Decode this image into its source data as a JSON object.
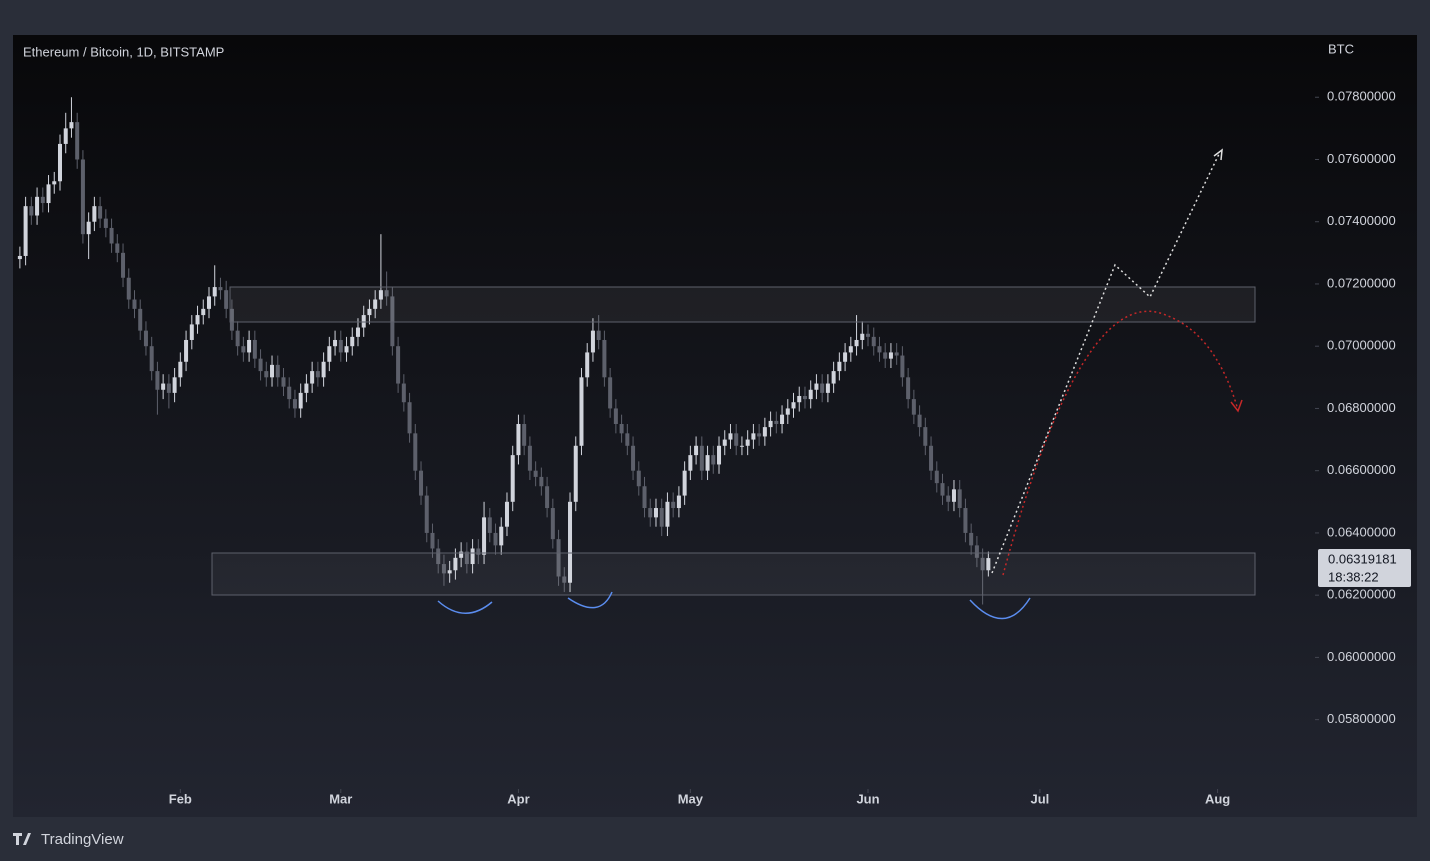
{
  "chart_data": {
    "type": "candlestick",
    "title": "Ethereum / Bitcoin, 1D, BITSTAMP",
    "y_axis_unit": "BTC",
    "countdown": "18:38:22",
    "brand": "TradingView",
    "up_color": "#d1d4dc",
    "down_color": "#5d606b",
    "xlim": [
      -1.2,
      226
    ],
    "xticks": [
      {
        "value": 28,
        "label": "Feb"
      },
      {
        "value": 56,
        "label": "Mar"
      },
      {
        "value": 87,
        "label": "Apr"
      },
      {
        "value": 117,
        "label": "May"
      },
      {
        "value": 148,
        "label": "Jun"
      },
      {
        "value": 178,
        "label": "Jul"
      },
      {
        "value": 209,
        "label": "Aug"
      }
    ],
    "ylim": [
      0.0559,
      0.08
    ],
    "yticks": [
      {
        "value": 0.078,
        "label": "0.07800000"
      },
      {
        "value": 0.076,
        "label": "0.07600000"
      },
      {
        "value": 0.074,
        "label": "0.07400000"
      },
      {
        "value": 0.072,
        "label": "0.07200000"
      },
      {
        "value": 0.07,
        "label": "0.07000000"
      },
      {
        "value": 0.068,
        "label": "0.06800000"
      },
      {
        "value": 0.066,
        "label": "0.06600000"
      },
      {
        "value": 0.064,
        "label": "0.06400000"
      },
      {
        "value": 0.062,
        "label": "0.06200000"
      },
      {
        "value": 0.06,
        "label": "0.06000000"
      },
      {
        "value": 0.058,
        "label": "0.05800000"
      }
    ],
    "open": [
      0.0728,
      0.0729,
      0.0745,
      0.0742,
      0.0748,
      0.0746,
      0.0752,
      0.0753,
      0.0765,
      0.077,
      0.0772,
      0.076,
      0.0736,
      0.074,
      0.0745,
      0.0741,
      0.0738,
      0.0733,
      0.073,
      0.0722,
      0.0715,
      0.0712,
      0.0705,
      0.07,
      0.0692,
      0.0686,
      0.0688,
      0.0685,
      0.069,
      0.0695,
      0.0702,
      0.0707,
      0.071,
      0.0712,
      0.0716,
      0.0719,
      0.0718,
      0.0712,
      0.0705,
      0.07,
      0.0698,
      0.0702,
      0.0696,
      0.0692,
      0.069,
      0.0694,
      0.069,
      0.0687,
      0.0683,
      0.068,
      0.0685,
      0.0688,
      0.0692,
      0.069,
      0.0695,
      0.07,
      0.0702,
      0.0698,
      0.07,
      0.0703,
      0.0706,
      0.071,
      0.0712,
      0.0715,
      0.0718,
      0.0716,
      0.07,
      0.0688,
      0.0682,
      0.0672,
      0.066,
      0.0652,
      0.064,
      0.0635,
      0.063,
      0.0627,
      0.0628,
      0.0632,
      0.0634,
      0.063,
      0.0635,
      0.0633,
      0.0645,
      0.064,
      0.0636,
      0.0642,
      0.065,
      0.0665,
      0.0675,
      0.0668,
      0.066,
      0.0658,
      0.0655,
      0.0648,
      0.0638,
      0.0626,
      0.0624,
      0.065,
      0.0668,
      0.069,
      0.0698,
      0.0705,
      0.0702,
      0.069,
      0.068,
      0.0675,
      0.0672,
      0.0668,
      0.066,
      0.0655,
      0.0648,
      0.0645,
      0.0648,
      0.0642,
      0.065,
      0.0648,
      0.0652,
      0.066,
      0.0665,
      0.0668,
      0.066,
      0.0665,
      0.0662,
      0.0668,
      0.067,
      0.0672,
      0.0668,
      0.0668,
      0.067,
      0.0672,
      0.0671,
      0.0674,
      0.0676,
      0.0675,
      0.0678,
      0.068,
      0.0682,
      0.0684,
      0.0683,
      0.0686,
      0.0688,
      0.0685,
      0.0688,
      0.0692,
      0.0695,
      0.0698,
      0.07,
      0.0702,
      0.0704,
      0.0703,
      0.07,
      0.0698,
      0.0696,
      0.0698,
      0.0697,
      0.069,
      0.0683,
      0.0678,
      0.0674,
      0.0668,
      0.066,
      0.0656,
      0.0652,
      0.065,
      0.0654,
      0.0648,
      0.064,
      0.0636,
      0.0632,
      0.0628
    ],
    "high": [
      0.0732,
      0.0748,
      0.0748,
      0.0751,
      0.0751,
      0.0755,
      0.0756,
      0.0768,
      0.0775,
      0.078,
      0.0775,
      0.0763,
      0.0743,
      0.0748,
      0.0748,
      0.0744,
      0.0741,
      0.0736,
      0.0733,
      0.0725,
      0.0718,
      0.0715,
      0.0708,
      0.0703,
      0.0695,
      0.0691,
      0.0691,
      0.0693,
      0.0698,
      0.0705,
      0.071,
      0.0713,
      0.0715,
      0.0719,
      0.0726,
      0.0722,
      0.0721,
      0.0715,
      0.0708,
      0.0703,
      0.0705,
      0.0705,
      0.0699,
      0.0695,
      0.0697,
      0.0697,
      0.0693,
      0.069,
      0.0686,
      0.0688,
      0.0691,
      0.0695,
      0.0695,
      0.0698,
      0.0703,
      0.0705,
      0.0705,
      0.0703,
      0.0706,
      0.0709,
      0.0713,
      0.0715,
      0.0718,
      0.0736,
      0.0724,
      0.0719,
      0.0703,
      0.0691,
      0.0685,
      0.0675,
      0.0663,
      0.0655,
      0.0643,
      0.0638,
      0.0633,
      0.0631,
      0.0635,
      0.0637,
      0.0637,
      0.0638,
      0.0638,
      0.065,
      0.0648,
      0.0643,
      0.0645,
      0.0653,
      0.0668,
      0.0678,
      0.0678,
      0.0671,
      0.0663,
      0.0661,
      0.0658,
      0.0651,
      0.0641,
      0.0629,
      0.0653,
      0.0671,
      0.0693,
      0.0701,
      0.0709,
      0.071,
      0.0705,
      0.0693,
      0.0683,
      0.0678,
      0.0675,
      0.0671,
      0.0663,
      0.0658,
      0.0651,
      0.0651,
      0.0651,
      0.0653,
      0.0653,
      0.0655,
      0.0663,
      0.0668,
      0.0671,
      0.0671,
      0.0668,
      0.0668,
      0.0671,
      0.0673,
      0.0675,
      0.0675,
      0.0671,
      0.0673,
      0.0675,
      0.0675,
      0.0677,
      0.0679,
      0.0679,
      0.0681,
      0.0683,
      0.0685,
      0.0687,
      0.0687,
      0.0689,
      0.0691,
      0.0691,
      0.0691,
      0.0695,
      0.0698,
      0.0701,
      0.0703,
      0.071,
      0.0708,
      0.0707,
      0.0706,
      0.0703,
      0.0701,
      0.0701,
      0.0701,
      0.07,
      0.0693,
      0.0686,
      0.0681,
      0.0677,
      0.0671,
      0.0663,
      0.0659,
      0.0655,
      0.0657,
      0.0657,
      0.0651,
      0.0643,
      0.0639,
      0.0635,
      0.0634
    ],
    "low": [
      0.0725,
      0.0726,
      0.0739,
      0.0739,
      0.0743,
      0.0743,
      0.0749,
      0.075,
      0.0762,
      0.0767,
      0.0757,
      0.0733,
      0.0728,
      0.0737,
      0.0738,
      0.0735,
      0.073,
      0.0727,
      0.0719,
      0.0712,
      0.0709,
      0.0702,
      0.0697,
      0.0689,
      0.0678,
      0.0683,
      0.068,
      0.0682,
      0.0687,
      0.0692,
      0.0699,
      0.0704,
      0.0707,
      0.0709,
      0.0713,
      0.0715,
      0.0709,
      0.0702,
      0.0697,
      0.0695,
      0.0695,
      0.0693,
      0.0689,
      0.0687,
      0.0687,
      0.0687,
      0.0684,
      0.068,
      0.0677,
      0.0677,
      0.0682,
      0.0685,
      0.0687,
      0.0687,
      0.0692,
      0.0697,
      0.0695,
      0.0695,
      0.0697,
      0.07,
      0.0703,
      0.0707,
      0.0709,
      0.0712,
      0.0713,
      0.0697,
      0.0685,
      0.0679,
      0.0669,
      0.0657,
      0.0649,
      0.0637,
      0.0632,
      0.0627,
      0.0623,
      0.0624,
      0.0625,
      0.0629,
      0.0627,
      0.0627,
      0.063,
      0.063,
      0.0637,
      0.0633,
      0.0633,
      0.0639,
      0.0647,
      0.0662,
      0.0665,
      0.0657,
      0.0655,
      0.0652,
      0.0645,
      0.0635,
      0.0623,
      0.0621,
      0.0621,
      0.0647,
      0.0665,
      0.0687,
      0.0695,
      0.0699,
      0.0687,
      0.0677,
      0.0672,
      0.0669,
      0.0665,
      0.0657,
      0.0652,
      0.0645,
      0.0642,
      0.0642,
      0.0639,
      0.0639,
      0.0645,
      0.0645,
      0.0649,
      0.0657,
      0.0662,
      0.0657,
      0.0657,
      0.0659,
      0.0659,
      0.0665,
      0.0667,
      0.0665,
      0.0665,
      0.0665,
      0.0667,
      0.0668,
      0.0668,
      0.0671,
      0.0672,
      0.0672,
      0.0675,
      0.0677,
      0.0679,
      0.068,
      0.068,
      0.0683,
      0.0682,
      0.0682,
      0.0685,
      0.0689,
      0.0692,
      0.0695,
      0.0697,
      0.0699,
      0.07,
      0.0697,
      0.0695,
      0.0693,
      0.0693,
      0.0694,
      0.0687,
      0.068,
      0.0675,
      0.0671,
      0.0665,
      0.0657,
      0.0653,
      0.0649,
      0.0647,
      0.0647,
      0.0645,
      0.0637,
      0.0633,
      0.0629,
      0.0617,
      0.0626
    ],
    "close": [
      0.0729,
      0.0745,
      0.0742,
      0.0748,
      0.0746,
      0.0752,
      0.0753,
      0.0765,
      0.077,
      0.0772,
      0.076,
      0.0736,
      0.074,
      0.0745,
      0.0741,
      0.0738,
      0.0733,
      0.073,
      0.0722,
      0.0715,
      0.0712,
      0.0705,
      0.07,
      0.0692,
      0.0686,
      0.0688,
      0.0685,
      0.069,
      0.0695,
      0.0702,
      0.0707,
      0.071,
      0.0712,
      0.0716,
      0.0719,
      0.0718,
      0.0712,
      0.0705,
      0.07,
      0.0698,
      0.0702,
      0.0696,
      0.0692,
      0.069,
      0.0694,
      0.069,
      0.0687,
      0.0683,
      0.068,
      0.0685,
      0.0688,
      0.0692,
      0.069,
      0.0695,
      0.07,
      0.0702,
      0.0698,
      0.07,
      0.0703,
      0.0706,
      0.071,
      0.0712,
      0.0715,
      0.0718,
      0.0716,
      0.07,
      0.0688,
      0.0682,
      0.0672,
      0.066,
      0.0652,
      0.064,
      0.0635,
      0.063,
      0.0627,
      0.0628,
      0.0632,
      0.0634,
      0.063,
      0.0635,
      0.0633,
      0.0645,
      0.064,
      0.0636,
      0.0642,
      0.065,
      0.0665,
      0.0675,
      0.0668,
      0.066,
      0.0658,
      0.0655,
      0.0648,
      0.0638,
      0.0626,
      0.0624,
      0.065,
      0.0668,
      0.069,
      0.0698,
      0.0705,
      0.0702,
      0.069,
      0.068,
      0.0675,
      0.0672,
      0.0668,
      0.066,
      0.0655,
      0.0648,
      0.0645,
      0.0648,
      0.0642,
      0.065,
      0.0648,
      0.0652,
      0.066,
      0.0665,
      0.0668,
      0.066,
      0.0665,
      0.0662,
      0.0668,
      0.067,
      0.0672,
      0.0668,
      0.0668,
      0.067,
      0.0672,
      0.0671,
      0.0674,
      0.0676,
      0.0675,
      0.0678,
      0.068,
      0.0682,
      0.0684,
      0.0683,
      0.0686,
      0.0688,
      0.0685,
      0.0688,
      0.0692,
      0.0695,
      0.0698,
      0.07,
      0.0702,
      0.0704,
      0.0703,
      0.07,
      0.0698,
      0.0696,
      0.0698,
      0.0697,
      0.069,
      0.0683,
      0.0678,
      0.0674,
      0.0668,
      0.066,
      0.0656,
      0.0652,
      0.065,
      0.0654,
      0.0648,
      0.064,
      0.0636,
      0.0632,
      0.0628,
      0.06319181
    ]
  }
}
